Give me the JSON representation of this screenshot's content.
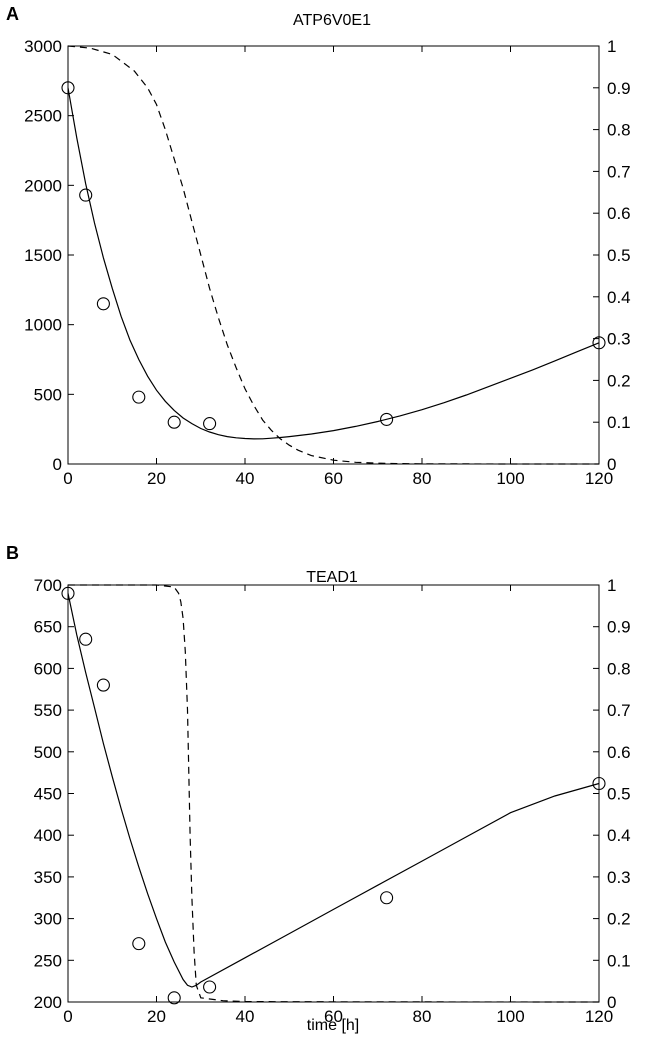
{
  "chart_data": [
    {
      "panel_label": "A",
      "type": "line",
      "title": "ATP6V0E1",
      "xlabel": "",
      "xlim": [
        0,
        120
      ],
      "x_ticks": [
        0,
        20,
        40,
        60,
        80,
        100,
        120
      ],
      "ylim_left": [
        0,
        3000
      ],
      "y_left_ticks": [
        0,
        500,
        1000,
        1500,
        2000,
        2500,
        3000
      ],
      "ylim_right": [
        0,
        1
      ],
      "y_right_ticks": [
        "0",
        "0.1",
        "0.2",
        "0.3",
        "0.4",
        "0.5",
        "0.6",
        "0.7",
        "0.8",
        "0.9",
        "1"
      ],
      "grid": false,
      "series": [
        {
          "style": "markers",
          "axis": "left",
          "x": [
            0,
            4,
            8,
            16,
            24,
            32,
            72,
            120
          ],
          "y": [
            2700,
            1930,
            1150,
            480,
            300,
            290,
            320,
            870
          ]
        },
        {
          "style": "solid",
          "axis": "left",
          "x": [
            0,
            2,
            4,
            6,
            8,
            10,
            12,
            14,
            16,
            18,
            20,
            22,
            24,
            26,
            28,
            30,
            32,
            34,
            36,
            38,
            40,
            42,
            44,
            46,
            48,
            50,
            55,
            60,
            65,
            70,
            75,
            80,
            85,
            90,
            95,
            100,
            105,
            110,
            115,
            120
          ],
          "y": [
            2700,
            2340,
            2010,
            1730,
            1480,
            1260,
            1060,
            890,
            750,
            630,
            530,
            450,
            385,
            330,
            290,
            255,
            230,
            210,
            197,
            188,
            183,
            180,
            181,
            185,
            190,
            197,
            215,
            240,
            270,
            305,
            345,
            390,
            440,
            495,
            555,
            615,
            675,
            740,
            805,
            870
          ]
        },
        {
          "style": "dashed",
          "axis": "right",
          "x": [
            0,
            5,
            10,
            15,
            18,
            20,
            22,
            24,
            26,
            28,
            30,
            32,
            34,
            36,
            38,
            40,
            42,
            44,
            46,
            48,
            50,
            52,
            55,
            60,
            65,
            70,
            75,
            80,
            90,
            100,
            110,
            120
          ],
          "y": [
            1.0,
            0.995,
            0.98,
            0.94,
            0.9,
            0.86,
            0.8,
            0.73,
            0.66,
            0.58,
            0.5,
            0.42,
            0.35,
            0.285,
            0.23,
            0.18,
            0.14,
            0.105,
            0.08,
            0.06,
            0.045,
            0.033,
            0.02,
            0.009,
            0.004,
            0.002,
            0.001,
            0.0005,
            0.0002,
            0.0001,
            0,
            0
          ]
        }
      ]
    },
    {
      "panel_label": "B",
      "type": "line",
      "title": "TEAD1",
      "xlabel": "time [h]",
      "xlim": [
        0,
        120
      ],
      "x_ticks": [
        0,
        20,
        40,
        60,
        80,
        100,
        120
      ],
      "ylim_left": [
        200,
        700
      ],
      "y_left_ticks": [
        200,
        250,
        300,
        350,
        400,
        450,
        500,
        550,
        600,
        650,
        700
      ],
      "ylim_right": [
        0,
        1
      ],
      "y_right_ticks": [
        "0",
        "0.1",
        "0.2",
        "0.3",
        "0.4",
        "0.5",
        "0.6",
        "0.7",
        "0.8",
        "0.9",
        "1"
      ],
      "grid": false,
      "series": [
        {
          "style": "markers",
          "axis": "left",
          "x": [
            0,
            4,
            8,
            16,
            24,
            32,
            72,
            120
          ],
          "y": [
            690,
            635,
            580,
            270,
            205,
            218,
            325,
            462
          ]
        },
        {
          "style": "solid",
          "axis": "left",
          "x": [
            0,
            2,
            4,
            6,
            8,
            10,
            12,
            14,
            16,
            18,
            20,
            22,
            24,
            26,
            27,
            28,
            29,
            30,
            40,
            50,
            60,
            70,
            80,
            90,
            100,
            110,
            120
          ],
          "y": [
            690,
            640,
            595,
            553,
            510,
            470,
            432,
            396,
            362,
            330,
            300,
            272,
            248,
            227,
            220,
            218,
            220,
            224,
            253,
            282,
            311,
            340,
            369,
            398,
            427,
            447,
            462
          ]
        },
        {
          "style": "dashed",
          "axis": "right",
          "x": [
            0,
            10,
            20,
            24,
            25,
            25.5,
            26,
            26.5,
            27,
            27.3,
            27.6,
            28,
            28.5,
            29,
            30,
            35,
            40,
            60,
            80,
            120
          ],
          "y": [
            1.0,
            1.0,
            1.0,
            0.995,
            0.98,
            0.96,
            0.92,
            0.84,
            0.7,
            0.55,
            0.4,
            0.25,
            0.12,
            0.04,
            0.01,
            0.003,
            0.001,
            0.0005,
            0.0002,
            0
          ]
        }
      ]
    }
  ]
}
